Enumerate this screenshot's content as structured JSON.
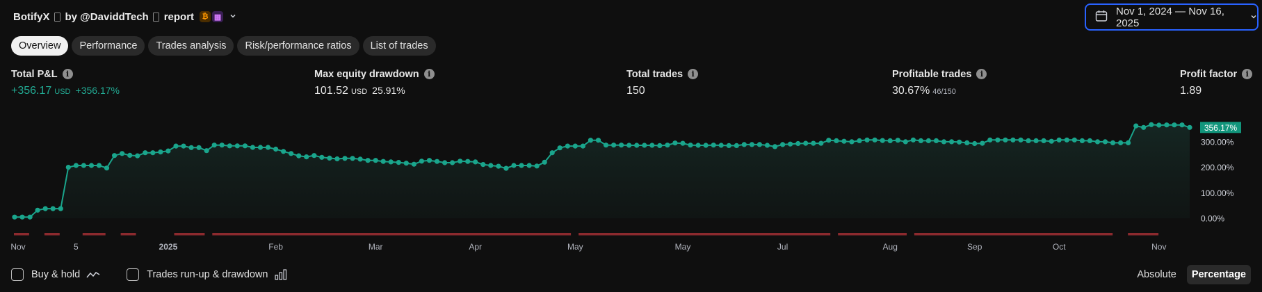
{
  "header": {
    "strategy_name": "BotifyX",
    "by_text": "by @DaviddTech",
    "report_text": "report",
    "badge1_icon": "bitcoin-icon",
    "badge2_icon": "calendar-icon",
    "badge1_glyph": "₿",
    "badge2_glyph": "▦"
  },
  "date_range": {
    "label": "Nov 1, 2024 — Nov 16, 2025"
  },
  "tabs": [
    {
      "label": "Overview",
      "active": true
    },
    {
      "label": "Performance"
    },
    {
      "label": "Trades analysis"
    },
    {
      "label": "Risk/performance ratios"
    },
    {
      "label": "List of trades"
    }
  ],
  "metrics": {
    "total_pnl": {
      "label": "Total P&L",
      "value": "+356.17",
      "unit": "USD",
      "pct": "+356.17%"
    },
    "max_dd": {
      "label": "Max equity drawdown",
      "value": "101.52",
      "unit": "USD",
      "pct": "25.91%"
    },
    "total_trades": {
      "label": "Total trades",
      "value": "150"
    },
    "profitable": {
      "label": "Profitable trades",
      "value": "30.67%",
      "sub": "46/150"
    },
    "profit_factor": {
      "label": "Profit factor",
      "value": "1.89"
    }
  },
  "info_glyph": "i",
  "colors": {
    "line": "#1aa58c",
    "drawdown": "#8c2a2e",
    "accent": "#2962ff",
    "last_label_bg": "#12967c"
  },
  "chart_data": {
    "type": "line",
    "title": "",
    "ylabel": "",
    "ylim": [
      0,
      400
    ],
    "y_ticks": [
      "0.00%",
      "100.00%",
      "200.00%",
      "300.00%"
    ],
    "y_tick_values": [
      0,
      100,
      200,
      300
    ],
    "last_value_label": "356.17%",
    "x_tick_labels": [
      "Nov",
      "5",
      "2025",
      "Feb",
      "Mar",
      "Apr",
      "May",
      "May",
      "Jul",
      "Aug",
      "Sep",
      "Oct",
      "Nov"
    ],
    "x_tick_trade_index": [
      0,
      8,
      20,
      34,
      47,
      60,
      73,
      87,
      100,
      114,
      125,
      136,
      149
    ],
    "series": [
      {
        "values": [
          5,
          5,
          5,
          32,
          38,
          38,
          38,
          200,
          207,
          207,
          207,
          207,
          197,
          246,
          254,
          247,
          245,
          257,
          257,
          260,
          264,
          283,
          283,
          277,
          277,
          265,
          287,
          287,
          284,
          284,
          284,
          278,
          278,
          278,
          271,
          262,
          254,
          245,
          241,
          246,
          239,
          236,
          233,
          235,
          235,
          232,
          227,
          227,
          223,
          221,
          219,
          216,
          212,
          224,
          227,
          223,
          218,
          218,
          224,
          223,
          221,
          211,
          207,
          204,
          196,
          207,
          207,
          207,
          205,
          220,
          257,
          276,
          283,
          283,
          283,
          306,
          306,
          287,
          287,
          287,
          286,
          286,
          286,
          286,
          285,
          287,
          295,
          294,
          287,
          286,
          286,
          287,
          286,
          285,
          285,
          289,
          289,
          289,
          286,
          281,
          289,
          291,
          293,
          294,
          294,
          294,
          306,
          304,
          302,
          300,
          304,
          307,
          307,
          305,
          304,
          306,
          300,
          307,
          304,
          304,
          304,
          300,
          300,
          299,
          296,
          293,
          294,
          307,
          307,
          307,
          307,
          307,
          304,
          304,
          304,
          302,
          307,
          307,
          307,
          304,
          304,
          300,
          300,
          296,
          296,
          296,
          362,
          356,
          367,
          365,
          366,
          366,
          366,
          356
        ]
      }
    ],
    "drawdown_spans": [
      [
        0,
        2
      ],
      [
        4,
        6
      ],
      [
        9,
        12
      ],
      [
        14,
        16
      ],
      [
        21,
        25
      ],
      [
        26,
        73
      ],
      [
        74,
        107
      ],
      [
        108,
        117
      ],
      [
        118,
        144
      ],
      [
        146,
        150
      ]
    ]
  },
  "footer": {
    "buy_hold": "Buy & hold",
    "runup": "Trades run-up & drawdown",
    "absolute": "Absolute",
    "percentage": "Percentage"
  }
}
